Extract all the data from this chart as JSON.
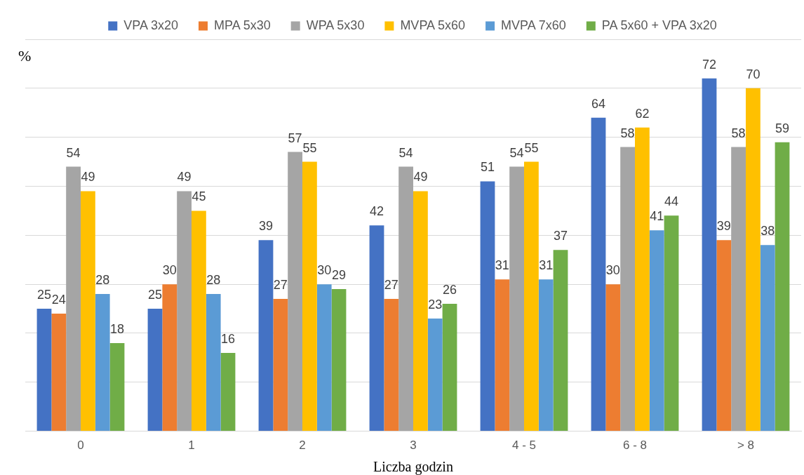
{
  "chart_data": {
    "type": "bar",
    "ylabel": "%",
    "xlabel": "Liczba godzin",
    "categories": [
      "0",
      "1",
      "2",
      "3",
      "4 - 5",
      "6 - 8",
      "> 8"
    ],
    "series": [
      {
        "name": "VPA 3x20",
        "color": "#4472c4",
        "values": [
          25,
          25,
          39,
          42,
          51,
          64,
          72
        ]
      },
      {
        "name": "MPA 5x30",
        "color": "#ed7d31",
        "values": [
          24,
          30,
          27,
          27,
          31,
          30,
          39
        ]
      },
      {
        "name": "WPA 5x30",
        "color": "#a5a5a5",
        "values": [
          54,
          49,
          57,
          54,
          54,
          58,
          58
        ]
      },
      {
        "name": "MVPA 5x60",
        "color": "#ffc000",
        "values": [
          49,
          45,
          55,
          49,
          55,
          62,
          70
        ]
      },
      {
        "name": "MVPA 7x60",
        "color": "#5b9bd5",
        "values": [
          28,
          28,
          30,
          23,
          31,
          41,
          38
        ]
      },
      {
        "name": "PA 5x60 + VPA 3x20",
        "color": "#70ad47",
        "values": [
          18,
          16,
          29,
          26,
          37,
          44,
          59
        ]
      }
    ],
    "ylim": [
      0,
      80
    ],
    "yticks": [
      {
        "value": 0,
        "label": null
      },
      {
        "value": 10,
        "label": null
      },
      {
        "value": 20,
        "label": null
      },
      {
        "value": 30,
        "label": null
      },
      {
        "value": 40,
        "label": null
      },
      {
        "value": 50,
        "label": null
      },
      {
        "value": 60,
        "label": null
      },
      {
        "value": 70,
        "label": null
      },
      {
        "value": 80,
        "label": null
      }
    ],
    "tick_labels": "x",
    "grid": "y",
    "legend": "top",
    "data_labels": true
  }
}
